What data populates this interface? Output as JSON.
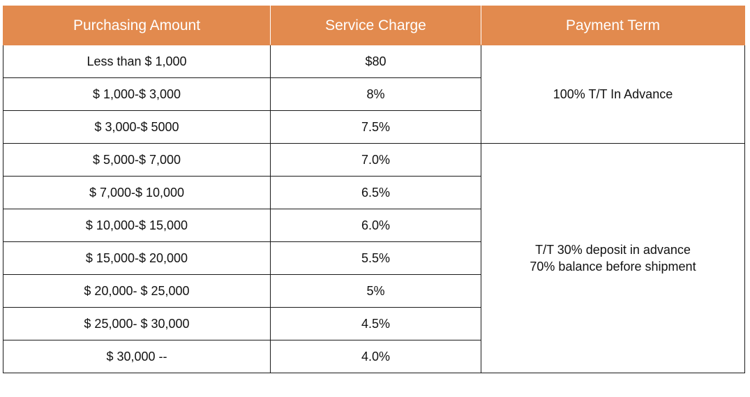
{
  "table": {
    "headers": [
      "Purchasing Amount",
      "Service Charge",
      "Payment Term"
    ],
    "rows": [
      {
        "amount": "Less than $ 1,000",
        "charge": "$80"
      },
      {
        "amount": "$ 1,000-$ 3,000",
        "charge": "8%"
      },
      {
        "amount": "$ 3,000-$ 5000",
        "charge": "7.5%"
      },
      {
        "amount": "$ 5,000-$ 7,000",
        "charge": "7.0%"
      },
      {
        "amount": "$ 7,000-$ 10,000",
        "charge": "6.5%"
      },
      {
        "amount": "$ 10,000-$ 15,000",
        "charge": "6.0%"
      },
      {
        "amount": "$ 15,000-$ 20,000",
        "charge": "5.5%"
      },
      {
        "amount": "$ 20,000- $ 25,000",
        "charge": "5%"
      },
      {
        "amount": "$ 25,000- $ 30,000",
        "charge": "4.5%"
      },
      {
        "amount": "$ 30,000 --",
        "charge": "4.0%"
      }
    ],
    "payment_terms": [
      {
        "lines": [
          "100% T/T In Advance"
        ]
      },
      {
        "lines": [
          "T/T 30% deposit in advance",
          "70% balance before shipment"
        ]
      }
    ]
  },
  "colors": {
    "header_background": "#e28a4e",
    "header_text": "#ffffff",
    "border": "#1a1a1a"
  }
}
